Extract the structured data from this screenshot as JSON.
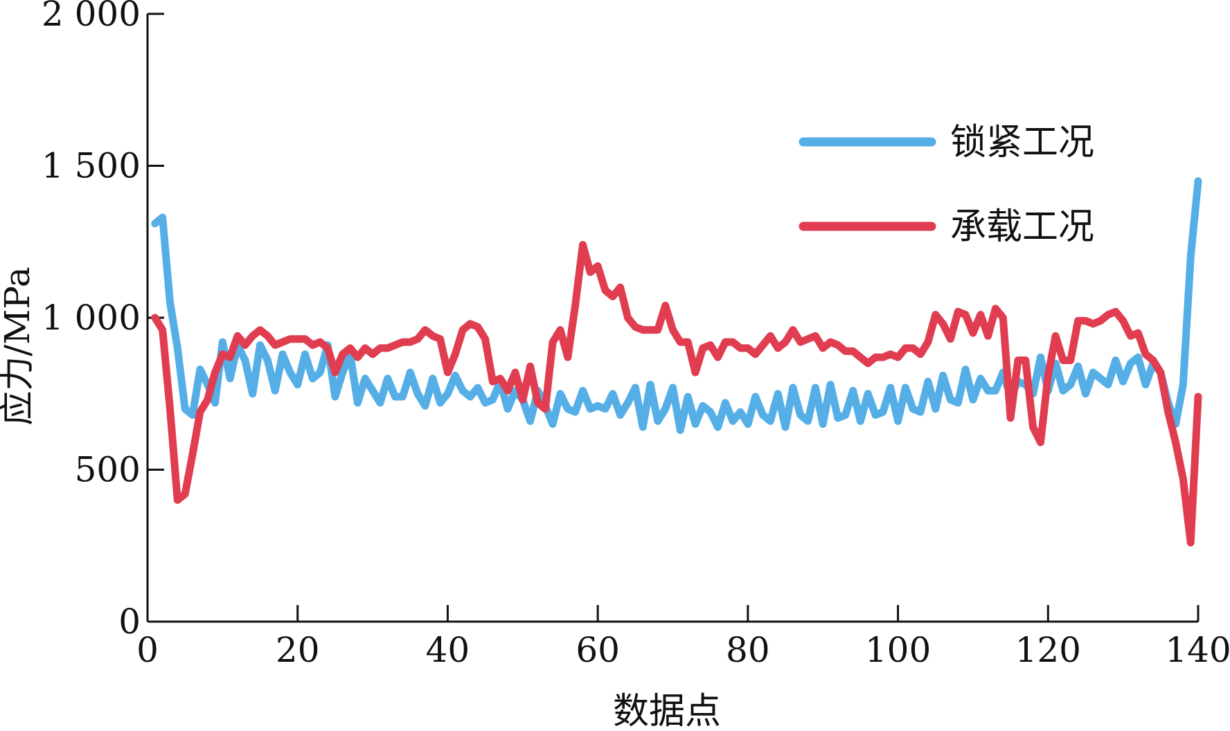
{
  "chart_data": {
    "type": "line",
    "title": "",
    "xlabel": "数据点",
    "ylabel": "应力/MPa",
    "xlim": [
      0,
      140
    ],
    "ylim": [
      0,
      2000
    ],
    "x_ticks": [
      0,
      20,
      40,
      60,
      80,
      100,
      120,
      140
    ],
    "y_ticks": [
      0,
      500,
      1000,
      1500,
      2000
    ],
    "x_tick_labels": [
      "0",
      "20",
      "40",
      "60",
      "80",
      "100",
      "120",
      "140"
    ],
    "y_tick_labels": [
      "0",
      "500",
      "1 000",
      "1 500",
      "2 000"
    ],
    "grid": false,
    "legend_position": "top-right",
    "series": [
      {
        "name": "锁紧工况",
        "color": "#55aee6",
        "x": [
          1,
          2,
          3,
          4,
          5,
          6,
          7,
          8,
          9,
          10,
          11,
          12,
          13,
          14,
          15,
          16,
          17,
          18,
          19,
          20,
          21,
          22,
          23,
          24,
          25,
          26,
          27,
          28,
          29,
          30,
          31,
          32,
          33,
          34,
          35,
          36,
          37,
          38,
          39,
          40,
          41,
          42,
          43,
          44,
          45,
          46,
          47,
          48,
          49,
          50,
          51,
          52,
          53,
          54,
          55,
          56,
          57,
          58,
          59,
          60,
          61,
          62,
          63,
          64,
          65,
          66,
          67,
          68,
          69,
          70,
          71,
          72,
          73,
          74,
          75,
          76,
          77,
          78,
          79,
          80,
          81,
          82,
          83,
          84,
          85,
          86,
          87,
          88,
          89,
          90,
          91,
          92,
          93,
          94,
          95,
          96,
          97,
          98,
          99,
          100,
          101,
          102,
          103,
          104,
          105,
          106,
          107,
          108,
          109,
          110,
          111,
          112,
          113,
          114,
          115,
          116,
          117,
          118,
          119,
          120,
          121,
          122,
          123,
          124,
          125,
          126,
          127,
          128,
          129,
          130,
          131,
          132,
          133,
          134,
          135,
          136,
          137,
          138,
          139,
          140
        ],
        "values": [
          1310,
          1330,
          1050,
          900,
          700,
          680,
          830,
          780,
          720,
          920,
          800,
          910,
          860,
          750,
          910,
          860,
          760,
          880,
          820,
          780,
          880,
          800,
          820,
          910,
          740,
          820,
          880,
          720,
          800,
          760,
          720,
          800,
          740,
          740,
          820,
          750,
          710,
          800,
          720,
          750,
          810,
          760,
          740,
          770,
          720,
          730,
          790,
          700,
          760,
          730,
          660,
          760,
          710,
          650,
          750,
          700,
          690,
          760,
          700,
          710,
          700,
          750,
          680,
          720,
          770,
          640,
          780,
          660,
          700,
          770,
          630,
          740,
          650,
          710,
          690,
          640,
          720,
          660,
          690,
          650,
          740,
          680,
          660,
          750,
          640,
          770,
          680,
          660,
          770,
          650,
          780,
          670,
          680,
          760,
          660,
          750,
          680,
          690,
          770,
          660,
          770,
          700,
          690,
          790,
          700,
          810,
          730,
          720,
          830,
          730,
          800,
          760,
          760,
          820,
          740,
          790,
          780,
          750,
          870,
          760,
          850,
          760,
          780,
          840,
          750,
          820,
          800,
          780,
          860,
          790,
          850,
          870,
          780,
          850,
          820,
          720,
          650,
          780,
          1200,
          1450
        ]
      },
      {
        "name": "承载工况",
        "color": "#e03d50",
        "x": [
          1,
          2,
          3,
          4,
          5,
          6,
          7,
          8,
          9,
          10,
          11,
          12,
          13,
          14,
          15,
          16,
          17,
          18,
          19,
          20,
          21,
          22,
          23,
          24,
          25,
          26,
          27,
          28,
          29,
          30,
          31,
          32,
          33,
          34,
          35,
          36,
          37,
          38,
          39,
          40,
          41,
          42,
          43,
          44,
          45,
          46,
          47,
          48,
          49,
          50,
          51,
          52,
          53,
          54,
          55,
          56,
          57,
          58,
          59,
          60,
          61,
          62,
          63,
          64,
          65,
          66,
          67,
          68,
          69,
          70,
          71,
          72,
          73,
          74,
          75,
          76,
          77,
          78,
          79,
          80,
          81,
          82,
          83,
          84,
          85,
          86,
          87,
          88,
          89,
          90,
          91,
          92,
          93,
          94,
          95,
          96,
          97,
          98,
          99,
          100,
          101,
          102,
          103,
          104,
          105,
          106,
          107,
          108,
          109,
          110,
          111,
          112,
          113,
          114,
          115,
          116,
          117,
          118,
          119,
          120,
          121,
          122,
          123,
          124,
          125,
          126,
          127,
          128,
          129,
          130,
          131,
          132,
          133,
          134,
          135,
          136,
          137,
          138,
          139,
          140
        ],
        "values": [
          1000,
          960,
          700,
          400,
          420,
          550,
          690,
          730,
          820,
          880,
          870,
          940,
          910,
          940,
          960,
          940,
          910,
          920,
          930,
          930,
          930,
          910,
          920,
          900,
          820,
          880,
          900,
          870,
          900,
          880,
          900,
          900,
          910,
          920,
          920,
          930,
          960,
          940,
          930,
          820,
          880,
          960,
          980,
          970,
          930,
          790,
          800,
          760,
          820,
          730,
          840,
          720,
          700,
          920,
          960,
          870,
          1040,
          1240,
          1150,
          1170,
          1090,
          1070,
          1100,
          1000,
          970,
          960,
          960,
          960,
          1040,
          960,
          920,
          920,
          820,
          900,
          910,
          870,
          920,
          920,
          900,
          900,
          880,
          910,
          940,
          900,
          920,
          960,
          920,
          930,
          940,
          900,
          920,
          910,
          890,
          890,
          870,
          850,
          870,
          870,
          880,
          870,
          900,
          900,
          880,
          920,
          1010,
          980,
          930,
          1020,
          1010,
          950,
          1010,
          940,
          1030,
          1000,
          670,
          860,
          860,
          640,
          590,
          810,
          940,
          860,
          860,
          990,
          990,
          980,
          990,
          1010,
          1020,
          990,
          940,
          950,
          880,
          860,
          820,
          690,
          590,
          470,
          260,
          740
        ]
      }
    ]
  }
}
